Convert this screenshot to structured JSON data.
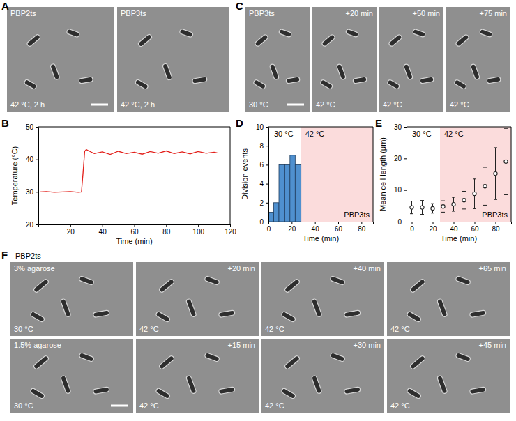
{
  "chart_data": [
    {
      "type": "line",
      "xlabel": "Time (min)",
      "ylabel": "Temperature (°C)",
      "x": [
        1,
        5,
        10,
        15,
        20,
        25,
        27,
        28,
        29,
        30,
        32,
        35,
        40,
        45,
        50,
        55,
        60,
        65,
        70,
        75,
        80,
        85,
        90,
        95,
        100,
        105,
        110,
        112
      ],
      "values": [
        30,
        30.1,
        29.9,
        30,
        30.1,
        29.9,
        30,
        36,
        42.5,
        43,
        42.5,
        41.8,
        42.3,
        41.5,
        42.5,
        41.8,
        42.2,
        41.6,
        42.4,
        41.9,
        42.6,
        41.8,
        42.3,
        41.7,
        42.4,
        41.9,
        42.2,
        42
      ],
      "color": "#e3201b",
      "xlim": [
        0,
        120
      ],
      "xticks": [
        20,
        40,
        60,
        80,
        100,
        120
      ],
      "ylim": [
        20,
        50
      ],
      "yticks": [
        20,
        30,
        40,
        50
      ]
    },
    {
      "type": "histogram",
      "xlabel": "Time (min)",
      "ylabel": "Division events",
      "bins": [
        0,
        4.5,
        9,
        14,
        18.5,
        23,
        28
      ],
      "counts": [
        1,
        2,
        6,
        6,
        7,
        6
      ],
      "color": "#4f90cf",
      "xlim": [
        0,
        90
      ],
      "xticks": [
        0,
        20,
        40,
        60,
        80
      ],
      "ylim": [
        0,
        10
      ],
      "yticks": [
        0,
        2,
        4,
        6,
        8,
        10
      ],
      "regions": [
        {
          "x0": 28,
          "x1": 90,
          "label": "42 °C",
          "color": "#fbdcdc"
        }
      ],
      "annotations": [
        "30 °C",
        "PBP3ts"
      ]
    },
    {
      "type": "scatter",
      "xlabel": "Time (min)",
      "ylabel": "Mean cell length (μm)",
      "x": [
        0,
        10,
        20,
        30,
        40,
        50,
        60,
        70,
        80,
        90
      ],
      "values": [
        4.5,
        4.5,
        4.2,
        4.8,
        5.5,
        6.8,
        8.8,
        11.2,
        15.2,
        19
      ],
      "errors": [
        2,
        2.2,
        1.5,
        1.8,
        2.2,
        2.8,
        4.7,
        6,
        8.2,
        10.5
      ],
      "color": "#222222",
      "marker": "circle",
      "xlim": [
        -5,
        95
      ],
      "xticks": [
        0,
        20,
        40,
        60,
        80
      ],
      "ylim": [
        0,
        30
      ],
      "yticks": [
        0,
        10,
        20,
        30
      ],
      "regions": [
        {
          "x0": 27,
          "x1": 95,
          "label": "42 °C",
          "color": "#fbdcdc"
        }
      ],
      "annotations": [
        "30 °C",
        "PBP3ts"
      ]
    }
  ],
  "figure": {
    "panel_labels": [
      "A",
      "B",
      "C",
      "D",
      "E",
      "F"
    ],
    "A": [
      {
        "strain": "PBP2ts",
        "temperature": "42 °C, 2 h"
      },
      {
        "strain": "PBP3ts",
        "temperature": "42 °C, 2 h"
      }
    ],
    "C": [
      {
        "strain": "PBP3ts",
        "temperature": "30 °C"
      },
      {
        "time": "+20 min",
        "temperature": "42 °C"
      },
      {
        "time": "+50 min",
        "temperature": "42 °C"
      },
      {
        "time": "+75 min",
        "temperature": "42 °C"
      }
    ],
    "F": {
      "strain": "PBP2ts",
      "rows": [
        [
          {
            "condition": "3% agarose",
            "temperature": "30 °C"
          },
          {
            "time": "+20 min",
            "temperature": "42 °C"
          },
          {
            "time": "+40 min",
            "temperature": "42 °C"
          },
          {
            "time": "+65 min",
            "temperature": "42 °C"
          }
        ],
        [
          {
            "condition": "1.5% agarose",
            "temperature": "30 °C"
          },
          {
            "time": "+15 min",
            "temperature": "42 °C"
          },
          {
            "time": "+30 min",
            "temperature": "42 °C"
          },
          {
            "time": "+45 min",
            "temperature": "42 °C"
          }
        ]
      ]
    }
  }
}
